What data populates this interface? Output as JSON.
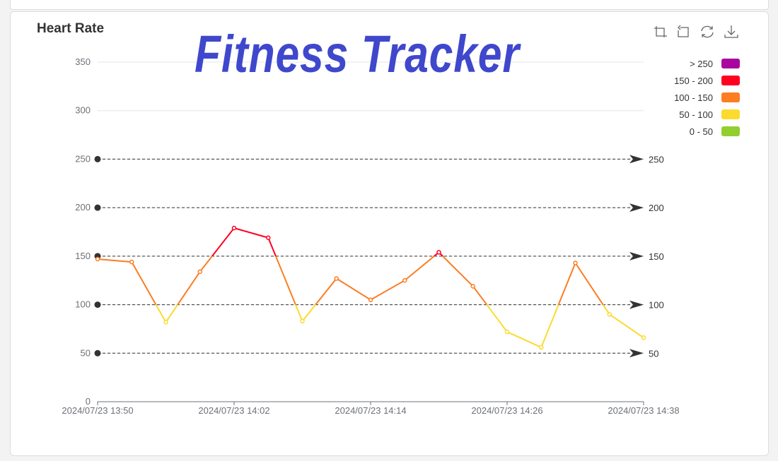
{
  "header": {
    "chart_title": "Heart Rate",
    "banner": "Fitness Tracker"
  },
  "toolbox": [
    "crop-icon",
    "restore-icon",
    "refresh-icon",
    "download-icon"
  ],
  "chart_data": {
    "type": "line",
    "title": "Heart Rate",
    "x": [
      "2024/07/23 13:50",
      "2024/07/23 13:53",
      "2024/07/23 13:56",
      "2024/07/23 13:59",
      "2024/07/23 14:02",
      "2024/07/23 14:05",
      "2024/07/23 14:08",
      "2024/07/23 14:11",
      "2024/07/23 14:14",
      "2024/07/23 14:17",
      "2024/07/23 14:20",
      "2024/07/23 14:23",
      "2024/07/23 14:26",
      "2024/07/23 14:29",
      "2024/07/23 14:32",
      "2024/07/23 14:35",
      "2024/07/23 14:38"
    ],
    "values": [
      147,
      144,
      82,
      134,
      179,
      169,
      83,
      127,
      105,
      125,
      154,
      119,
      72,
      56,
      143,
      90,
      66
    ],
    "x_tick_labels": [
      "2024/07/23 13:50",
      "2024/07/23 14:02",
      "2024/07/23 14:14",
      "2024/07/23 14:26",
      "2024/07/23 14:38"
    ],
    "ylim": [
      0,
      350
    ],
    "y_ticks": [
      0,
      50,
      100,
      150,
      200,
      250,
      300,
      350
    ],
    "grid": true,
    "mark_lines": [
      50,
      100,
      150,
      200,
      250
    ],
    "visual_map": {
      "placement": "top-right",
      "pieces": [
        {
          "label": "> 250",
          "min": 250,
          "max": 350,
          "color": "#aa069f"
        },
        {
          "label": "150 - 200",
          "min": 150,
          "max": 200,
          "color": "#ff0020"
        },
        {
          "label": "100 - 150",
          "min": 100,
          "max": 150,
          "color": "#fc7d22"
        },
        {
          "label": "50 - 100",
          "min": 50,
          "max": 100,
          "color": "#fbdb2e"
        },
        {
          "label": "0 - 50",
          "min": 0,
          "max": 50,
          "color": "#93ce2f"
        }
      ]
    }
  }
}
